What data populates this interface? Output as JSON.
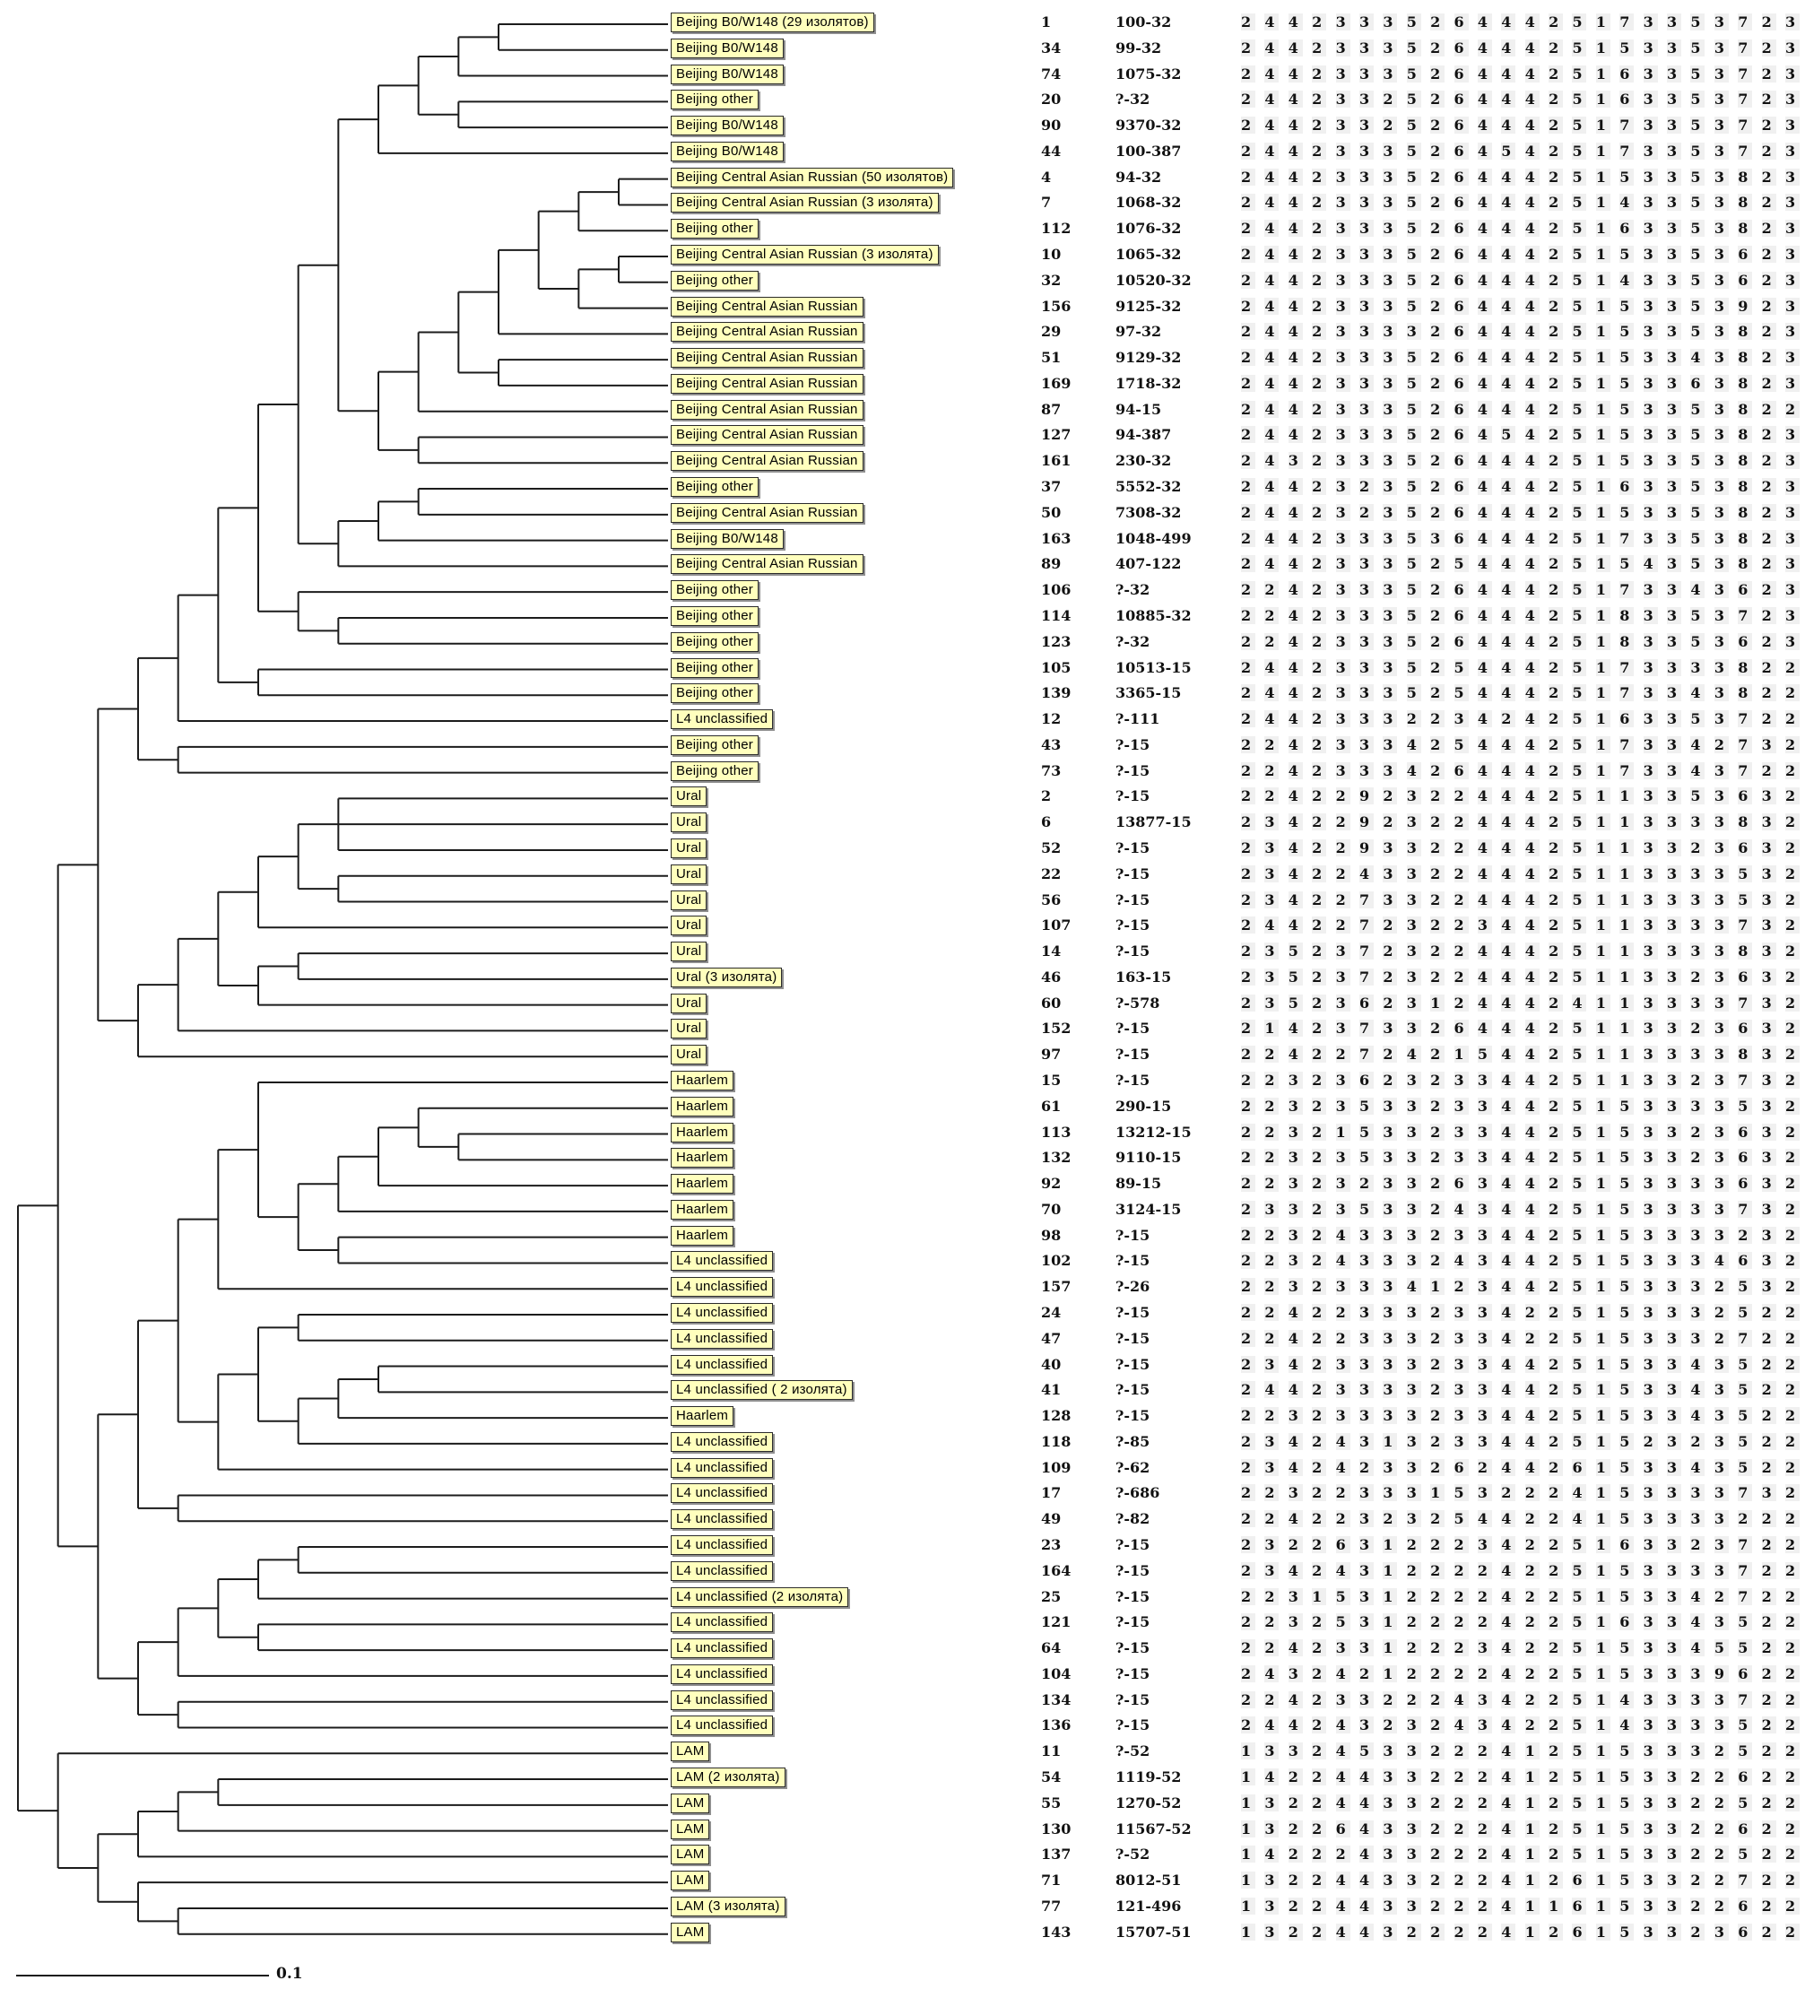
{
  "figure": {
    "type": "phylogenetic-tree-with-genotype-table",
    "scale_bar": {
      "label": "0.1"
    },
    "colors": {
      "background": "#ffffff",
      "label_fill": "#ffffbd",
      "label_border": "#2b2b2b",
      "label_shadow": "#8f8f8f",
      "tree_line": "#1c1c1c",
      "text": "#000000"
    }
  },
  "rows": [
    {
      "label": "Beijing B0/W148 (29 изолятов)",
      "id": "1",
      "code": "100-32",
      "digits": "2 4 4 2 3 3 3 5 2 6 4 4 4 2 5 1 7 3 3 5 3 7 2 3"
    },
    {
      "label": "Beijing B0/W148",
      "id": "34",
      "code": "99-32",
      "digits": "2 4 4 2 3 3 3 5 2 6 4 4 4 2 5 1 5 3 3 5 3 7 2 3"
    },
    {
      "label": "Beijing B0/W148",
      "id": "74",
      "code": "1075-32",
      "digits": "2 4 4 2 3 3 3 5 2 6 4 4 4 2 5 1 6 3 3 5 3 7 2 3"
    },
    {
      "label": "Beijing other",
      "id": "20",
      "code": "?-32",
      "digits": "2 4 4 2 3 3 2 5 2 6 4 4 4 2 5 1 6 3 3 5 3 7 2 3"
    },
    {
      "label": "Beijing B0/W148",
      "id": "90",
      "code": "9370-32",
      "digits": "2 4 4 2 3 3 2 5 2 6 4 4 4 2 5 1 7 3 3 5 3 7 2 3"
    },
    {
      "label": "Beijing B0/W148",
      "id": "44",
      "code": "100-387",
      "digits": "2 4 4 2 3 3 3 5 2 6 4 5 4 2 5 1 7 3 3 5 3 7 2 3"
    },
    {
      "label": "Beijing Central Asian Russian (50 изолятов)",
      "id": "4",
      "code": "94-32",
      "digits": "2 4 4 2 3 3 3 5 2 6 4 4 4 2 5 1 5 3 3 5 3 8 2 3"
    },
    {
      "label": "Beijing Central Asian Russian (3 изолята)",
      "id": "7",
      "code": "1068-32",
      "digits": "2 4 4 2 3 3 3 5 2 6 4 4 4 2 5 1 4 3 3 5 3 8 2 3"
    },
    {
      "label": "Beijing other",
      "id": "112",
      "code": "1076-32",
      "digits": "2 4 4 2 3 3 3 5 2 6 4 4 4 2 5 1 6 3 3 5 3 8 2 3"
    },
    {
      "label": "Beijing Central Asian Russian (3 изолята)",
      "id": "10",
      "code": "1065-32",
      "digits": "2 4 4 2 3 3 3 5 2 6 4 4 4 2 5 1 5 3 3 5 3 6 2 3"
    },
    {
      "label": "Beijing other",
      "id": "32",
      "code": "10520-32",
      "digits": "2 4 4 2 3 3 3 5 2 6 4 4 4 2 5 1 4 3 3 5 3 6 2 3"
    },
    {
      "label": "Beijing Central Asian Russian",
      "id": "156",
      "code": "9125-32",
      "digits": "2 4 4 2 3 3 3 5 2 6 4 4 4 2 5 1 5 3 3 5 3 9 2 3"
    },
    {
      "label": "Beijing Central Asian Russian",
      "id": "29",
      "code": "97-32",
      "digits": "2 4 4 2 3 3 3 3 2 6 4 4 4 2 5 1 5 3 3 5 3 8 2 3"
    },
    {
      "label": "Beijing Central Asian Russian",
      "id": "51",
      "code": "9129-32",
      "digits": "2 4 4 2 3 3 3 5 2 6 4 4 4 2 5 1 5 3 3 4 3 8 2 3"
    },
    {
      "label": "Beijing Central Asian Russian",
      "id": "169",
      "code": "1718-32",
      "digits": "2 4 4 2 3 3 3 5 2 6 4 4 4 2 5 1 5 3 3 6 3 8 2 3"
    },
    {
      "label": "Beijing Central Asian Russian",
      "id": "87",
      "code": "94-15",
      "digits": "2 4 4 2 3 3 3 5 2 6 4 4 4 2 5 1 5 3 3 5 3 8 2 2"
    },
    {
      "label": "Beijing Central Asian Russian",
      "id": "127",
      "code": "94-387",
      "digits": "2 4 4 2 3 3 3 5 2 6 4 5 4 2 5 1 5 3 3 5 3 8 2 3"
    },
    {
      "label": "Beijing Central Asian Russian",
      "id": "161",
      "code": "230-32",
      "digits": "2 4 3 2 3 3 3 5 2 6 4 4 4 2 5 1 5 3 3 5 3 8 2 3"
    },
    {
      "label": "Beijing other",
      "id": "37",
      "code": "5552-32",
      "digits": "2 4 4 2 3 2 3 5 2 6 4 4 4 2 5 1 6 3 3 5 3 8 2 3"
    },
    {
      "label": "Beijing Central Asian Russian",
      "id": "50",
      "code": "7308-32",
      "digits": "2 4 4 2 3 2 3 5 2 6 4 4 4 2 5 1 5 3 3 5 3 8 2 3"
    },
    {
      "label": "Beijing B0/W148",
      "id": "163",
      "code": "1048-499",
      "digits": "2 4 4 2 3 3 3 5 3 6 4 4 4 2 5 1 7 3 3 5 3 8 2 3"
    },
    {
      "label": "Beijing Central Asian Russian",
      "id": "89",
      "code": "407-122",
      "digits": "2 4 4 2 3 3 3 5 2 5 4 4 4 2 5 1 5 4 3 5 3 8 2 3"
    },
    {
      "label": "Beijing other",
      "id": "106",
      "code": "?-32",
      "digits": "2 2 4 2 3 3 3 5 2 6 4 4 4 2 5 1 7 3 3 4 3 6 2 3"
    },
    {
      "label": "Beijing other",
      "id": "114",
      "code": "10885-32",
      "digits": "2 2 4 2 3 3 3 5 2 6 4 4 4 2 5 1 8 3 3 5 3 7 2 3"
    },
    {
      "label": "Beijing other",
      "id": "123",
      "code": "?-32",
      "digits": "2 2 4 2 3 3 3 5 2 6 4 4 4 2 5 1 8 3 3 5 3 6 2 3"
    },
    {
      "label": "Beijing other",
      "id": "105",
      "code": "10513-15",
      "digits": "2 4 4 2 3 3 3 5 2 5 4 4 4 2 5 1 7 3 3 3 3 8 2 2"
    },
    {
      "label": "Beijing other",
      "id": "139",
      "code": "3365-15",
      "digits": "2 4 4 2 3 3 3 5 2 5 4 4 4 2 5 1 7 3 3 4 3 8 2 2"
    },
    {
      "label": "L4 unclassified",
      "id": "12",
      "code": "?-111",
      "digits": "2 4 4 2 3 3 3 2 2 3 4 2 4 2 5 1 6 3 3 5 3 7 2 2"
    },
    {
      "label": "Beijing other",
      "id": "43",
      "code": "?-15",
      "digits": "2 2 4 2 3 3 3 4 2 5 4 4 4 2 5 1 7 3 3 4 2 7 3 2"
    },
    {
      "label": "Beijing other",
      "id": "73",
      "code": "?-15",
      "digits": "2 2 4 2 3 3 3 4 2 6 4 4 4 2 5 1 7 3 3 4 3 7 2 2"
    },
    {
      "label": "Ural",
      "id": "2",
      "code": "?-15",
      "digits": "2 2 4 2 2 9 2 3 2 2 4 4 4 2 5 1 1 3 3 5 3 6 3 2"
    },
    {
      "label": "Ural",
      "id": "6",
      "code": "13877-15",
      "digits": "2 3 4 2 2 9 2 3 2 2 4 4 4 2 5 1 1 3 3 3 3 8 3 2"
    },
    {
      "label": "Ural",
      "id": "52",
      "code": "?-15",
      "digits": "2 3 4 2 2 9 3 3 2 2 4 4 4 2 5 1 1 3 3 2 3 6 3 2"
    },
    {
      "label": "Ural",
      "id": "22",
      "code": "?-15",
      "digits": "2 3 4 2 2 4 3 3 2 2 4 4 4 2 5 1 1 3 3 3 3 5 3 2"
    },
    {
      "label": "Ural",
      "id": "56",
      "code": "?-15",
      "digits": "2 3 4 2 2 7 3 3 2 2 4 4 4 2 5 1 1 3 3 3 3 5 3 2"
    },
    {
      "label": "Ural",
      "id": "107",
      "code": "?-15",
      "digits": "2 4 4 2 2 7 2 3 2 2 3 4 4 2 5 1 1 3 3 3 3 7 3 2"
    },
    {
      "label": "Ural",
      "id": "14",
      "code": "?-15",
      "digits": "2 3 5 2 3 7 2 3 2 2 4 4 4 2 5 1 1 3 3 3 3 8 3 2"
    },
    {
      "label": "Ural (3 изолята)",
      "id": "46",
      "code": "163-15",
      "digits": "2 3 5 2 3 7 2 3 2 2 4 4 4 2 5 1 1 3 3 2 3 6 3 2"
    },
    {
      "label": "Ural",
      "id": "60",
      "code": "?-578",
      "digits": "2 3 5 2 3 6 2 3 1 2 4 4 4 2 4 1 1 3 3 3 3 7 3 2"
    },
    {
      "label": "Ural",
      "id": "152",
      "code": "?-15",
      "digits": "2 1 4 2 3 7 3 3 2 6 4 4 4 2 5 1 1 3 3 2 3 6 3 2"
    },
    {
      "label": "Ural",
      "id": "97",
      "code": "?-15",
      "digits": "2 2 4 2 2 7 2 4 2 1 5 4 4 2 5 1 1 3 3 3 3 8 3 2"
    },
    {
      "label": "Haarlem",
      "id": "15",
      "code": "?-15",
      "digits": "2 2 3 2 3 6 2 3 2 3 3 4 4 2 5 1 1 3 3 2 3 7 3 2"
    },
    {
      "label": "Haarlem",
      "id": "61",
      "code": "290-15",
      "digits": "2 2 3 2 3 5 3 3 2 3 3 4 4 2 5 1 5 3 3 3 3 5 3 2"
    },
    {
      "label": "Haarlem",
      "id": "113",
      "code": "13212-15",
      "digits": "2 2 3 2 1 5 3 3 2 3 3 4 4 2 5 1 5 3 3 2 3 6 3 2"
    },
    {
      "label": "Haarlem",
      "id": "132",
      "code": "9110-15",
      "digits": "2 2 3 2 3 5 3 3 2 3 3 4 4 2 5 1 5 3 3 2 3 6 3 2"
    },
    {
      "label": "Haarlem",
      "id": "92",
      "code": "89-15",
      "digits": "2 2 3 2 3 2 3 3 2 6 3 4 4 2 5 1 5 3 3 3 3 6 3 2"
    },
    {
      "label": "Haarlem",
      "id": "70",
      "code": "3124-15",
      "digits": "2 3 3 2 3 5 3 3 2 4 3 4 4 2 5 1 5 3 3 3 3 7 3 2"
    },
    {
      "label": "Haarlem",
      "id": "98",
      "code": "?-15",
      "digits": "2 2 3 2 4 3 3 3 2 3 3 4 4 2 5 1 5 3 3 3 3 2 3 2"
    },
    {
      "label": "L4 unclassified",
      "id": "102",
      "code": "?-15",
      "digits": "2 2 3 2 4 3 3 3 2 4 3 4 4 2 5 1 5 3 3 3 4 6 3 2"
    },
    {
      "label": "L4 unclassified",
      "id": "157",
      "code": "?-26",
      "digits": "2 2 3 2 3 3 3 4 1 2 3 4 4 2 5 1 5 3 3 3 2 5 3 2"
    },
    {
      "label": "L4 unclassified",
      "id": "24",
      "code": "?-15",
      "digits": "2 2 4 2 2 3 3 3 2 3 3 4 2 2 5 1 5 3 3 3 2 5 2 2"
    },
    {
      "label": "L4 unclassified",
      "id": "47",
      "code": "?-15",
      "digits": "2 2 4 2 2 3 3 3 2 3 3 4 2 2 5 1 5 3 3 3 2 7 2 2"
    },
    {
      "label": "L4 unclassified",
      "id": "40",
      "code": "?-15",
      "digits": "2 3 4 2 3 3 3 3 2 3 3 4 4 2 5 1 5 3 3 4 3 5 2 2"
    },
    {
      "label": "L4 unclassified ( 2 изолята)",
      "id": "41",
      "code": "?-15",
      "digits": "2 4 4 2 3 3 3 3 2 3 3 4 4 2 5 1 5 3 3 4 3 5 2 2"
    },
    {
      "label": "Haarlem",
      "id": "128",
      "code": "?-15",
      "digits": "2 2 3 2 3 3 3 3 2 3 3 4 4 2 5 1 5 3 3 4 3 5 2 2"
    },
    {
      "label": "L4 unclassified",
      "id": "118",
      "code": "?-85",
      "digits": "2 3 4 2 4 3 1 3 2 3 3 4 4 2 5 1 5 2 3 2 3 5 2 2"
    },
    {
      "label": "L4 unclassified",
      "id": "109",
      "code": "?-62",
      "digits": "2 3 4 2 4 2 3 3 2 6 2 4 4 2 6 1 5 3 3 4 3 5 2 2"
    },
    {
      "label": "L4 unclassified",
      "id": "17",
      "code": "?-686",
      "digits": "2 2 3 2 2 3 3 3 1 5 3 2 2 2 4 1 5 3 3 3 3 7 3 2"
    },
    {
      "label": "L4 unclassified",
      "id": "49",
      "code": "?-82",
      "digits": "2 2 4 2 2 3 2 3 2 5 4 4 2 2 4 1 5 3 3 3 3 2 2 2"
    },
    {
      "label": "L4 unclassified",
      "id": "23",
      "code": "?-15",
      "digits": "2 3 2 2 6 3 1 2 2 2 3 4 2 2 5 1 6 3 3 2 3 7 2 2"
    },
    {
      "label": "L4 unclassified",
      "id": "164",
      "code": "?-15",
      "digits": "2 3 4 2 4 3 1 2 2 2 2 4 2 2 5 1 5 3 3 3 3 7 2 2"
    },
    {
      "label": "L4 unclassified (2 изолята)",
      "id": "25",
      "code": "?-15",
      "digits": "2 2 3 1 5 3 1 2 2 2 2 4 2 2 5 1 5 3 3 4 2 7 2 2"
    },
    {
      "label": "L4 unclassified",
      "id": "121",
      "code": "?-15",
      "digits": "2 2 3 2 5 3 1 2 2 2 2 4 2 2 5 1 6 3 3 4 3 5 2 2"
    },
    {
      "label": "L4 unclassified",
      "id": "64",
      "code": "?-15",
      "digits": "2 2 4 2 3 3 1 2 2 2 3 4 2 2 5 1 5 3 3 4 5 5 2 2"
    },
    {
      "label": "L4 unclassified",
      "id": "104",
      "code": "?-15",
      "digits": "2 4 3 2 4 2 1 2 2 2 2 4 2 2 5 1 5 3 3 3 9 6 2 2"
    },
    {
      "label": "L4 unclassified",
      "id": "134",
      "code": "?-15",
      "digits": "2 2 4 2 3 3 2 2 2 4 3 4 2 2 5 1 4 3 3 3 3 7 2 2"
    },
    {
      "label": "L4 unclassified",
      "id": "136",
      "code": "?-15",
      "digits": "2 4 4 2 4 3 2 3 2 4 3 4 2 2 5 1 4 3 3 3 3 5 2 2"
    },
    {
      "label": "LAM",
      "id": "11",
      "code": "?-52",
      "digits": "1 3 3 2 4 5 3 3 2 2 2 4 1 2 5 1 5 3 3 3 2 5 2 2"
    },
    {
      "label": "LAM (2 изолята)",
      "id": "54",
      "code": "1119-52",
      "digits": "1 4 2 2 4 4 3 3 2 2 2 4 1 2 5 1 5 3 3 2 2 6 2 2"
    },
    {
      "label": "LAM",
      "id": "55",
      "code": "1270-52",
      "digits": "1 3 2 2 4 4 3 3 2 2 2 4 1 2 5 1 5 3 3 2 2 5 2 2"
    },
    {
      "label": "LAM",
      "id": "130",
      "code": "11567-52",
      "digits": "1 3 2 2 6 4 3 3 2 2 2 4 1 2 5 1 5 3 3 2 2 6 2 2"
    },
    {
      "label": "LAM",
      "id": "137",
      "code": "?-52",
      "digits": "1 4 2 2 2 4 3 3 2 2 2 4 1 2 5 1 5 3 3 2 2 5 2 2"
    },
    {
      "label": "LAM",
      "id": "71",
      "code": "8012-51",
      "digits": "1 3 2 2 4 4 3 3 2 2 2 4 1 2 6 1 5 3 3 2 2 7 2 2"
    },
    {
      "label": "LAM (3 изолята)",
      "id": "77",
      "code": "121-496",
      "digits": "1 3 2 2 4 4 3 3 2 2 2 4 1 1 6 1 5 3 3 2 2 6 2 2"
    },
    {
      "label": "LAM",
      "id": "143",
      "code": "15707-51",
      "digits": "1 3 2 2 4 4 3 2 2 2 2 4 1 2 6 1 5 3 3 2 3 6 2 2"
    }
  ],
  "tree": [
    [
      [
        [
          [
            [
              [
                [
                  [
                    [
                      [
                        [
                          [
                            0,
                            1
                          ],
                          2
                        ],
                        [
                          3,
                          4
                        ]
                      ],
                      5
                    ],
                    [
                      [
                        [
                          [
                            [
                              [
                                [
                                  6,
                                  7
                                ],
                                8
                              ],
                              [
                                [
                                  9,
                                  10
                                ],
                                11
                              ]
                            ],
                            12
                          ],
                          [
                            13,
                            14
                          ]
                        ],
                        15
                      ],
                      [
                        16,
                        17
                      ]
                    ]
                  ],
                  [
                    [
                      [
                        18,
                        19
                      ],
                      20
                    ],
                    21
                  ]
                ],
                [
                  22,
                  [
                    23,
                    24
                  ]
                ]
              ],
              [
                25,
                26
              ]
            ],
            27
          ],
          [
            28,
            29
          ]
        ],
        [
          [
            [
              [
                [
                  [
                    30,
                    31,
                    32
                  ],
                  [
                    33,
                    34
                  ]
                ],
                35
              ],
              [
                [
                  36,
                  37
                ],
                38
              ]
            ],
            39
          ],
          40
        ]
      ],
      [
        [
          [
            [
              [
                41,
                [
                  [
                    [
                      [
                        42,
                        [
                          43,
                          44
                        ]
                      ],
                      45
                    ],
                    46
                  ],
                  [
                    47,
                    48
                  ]
                ]
              ],
              49
            ],
            [
              [
                [
                  50,
                  51
                ],
                [
                  [
                    [
                      52,
                      53
                    ],
                    54
                  ],
                  55
                ]
              ],
              56
            ]
          ],
          [
            57,
            58
          ]
        ],
        [
          [
            [
              [
                [
                  59,
                  60
                ],
                61
              ],
              [
                62,
                63
              ]
            ],
            64
          ],
          [
            65,
            66
          ]
        ]
      ]
    ],
    [
      67,
      [
        [
          [
            [
              68,
              69
            ],
            70
          ],
          71
        ],
        [
          72,
          [
            73,
            74
          ]
        ]
      ]
    ]
  ]
}
